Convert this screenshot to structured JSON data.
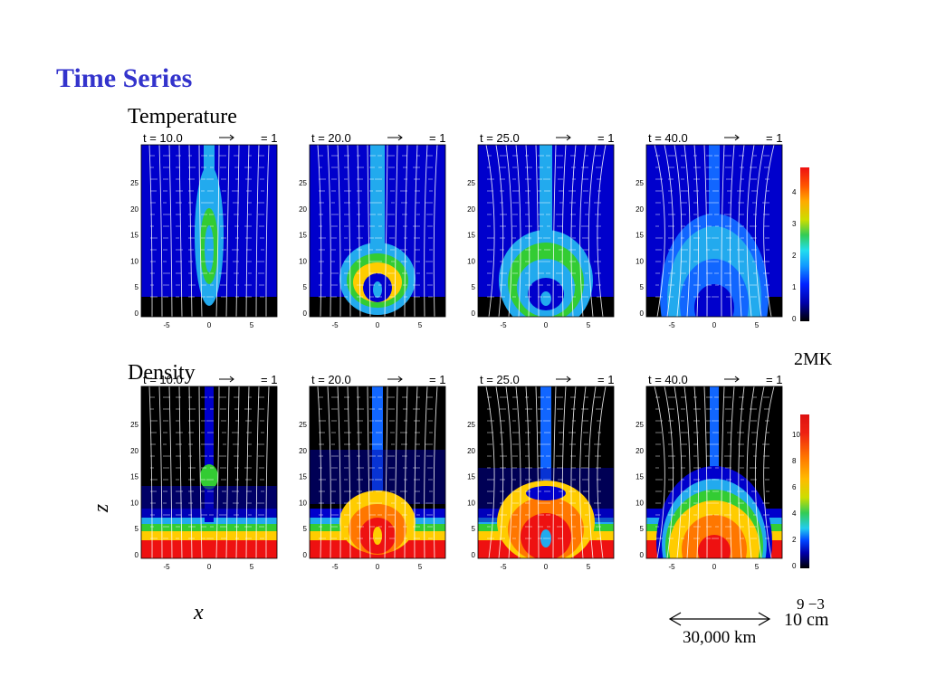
{
  "slide": {
    "title": "Time Series",
    "labels": {
      "temperature": "Temperature",
      "density": "Density",
      "z": "z",
      "x": "x"
    }
  },
  "panels": {
    "times": [
      "t = 10.0",
      "t = 20.0",
      "t = 25.0",
      "t = 40.0"
    ],
    "vector_scale": "= 1",
    "y_ticks": [
      "0",
      "5",
      "10",
      "15",
      "20",
      "25"
    ],
    "x_ticks": [
      "-5",
      "0",
      "5"
    ]
  },
  "temperature_colorbar": {
    "ticks": [
      "0",
      "1",
      "2",
      "3",
      "4"
    ],
    "unit": "2MK"
  },
  "density_colorbar": {
    "ticks": [
      "0",
      "2",
      "4",
      "6",
      "8",
      "10"
    ]
  },
  "scale": {
    "length": "30,000 km",
    "density_unit_base": "10 cm",
    "density_unit_exponents": "9  −3"
  },
  "colors": {
    "title": "#3333cc",
    "plasma_dark": "#000000",
    "plasma_blue": "#0000cc",
    "plasma_cyan": "#22aaee",
    "plasma_green": "#33cc33",
    "plasma_yellow": "#ffcc00",
    "plasma_red": "#ee1111"
  }
}
